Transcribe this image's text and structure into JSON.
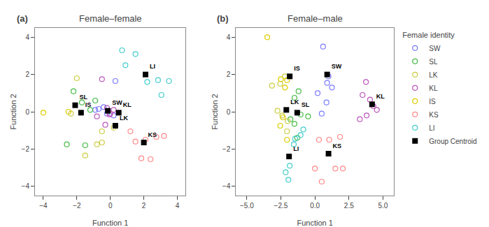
{
  "chart_data": [
    {
      "type": "scatter",
      "title": "Female–female",
      "annotations": [
        "(a)"
      ],
      "xlabel": "Function 1",
      "ylabel": "Function 2",
      "xlim": [
        -4.5,
        4.5
      ],
      "ylim": [
        -4.5,
        4.5
      ],
      "xticks": [
        -4,
        -2,
        0,
        2,
        4
      ],
      "yticks": [
        -4,
        -2,
        0,
        2,
        4
      ],
      "grid": false,
      "series": [
        {
          "name": "SW",
          "color": "#7b7bff",
          "marker": "circle-open",
          "x": [
            -0.9,
            -0.4,
            0.3,
            -0.2,
            0.2,
            -0.7
          ],
          "values": [
            0.1,
            0.25,
            1.65,
            -0.1,
            -0.2,
            0.15
          ]
        },
        {
          "name": "SL",
          "color": "#44bb44",
          "marker": "circle-open",
          "x": [
            -2.2,
            -1.7,
            -1.5,
            -1.2,
            -0.9,
            -2.6
          ],
          "values": [
            1.1,
            0.5,
            -1.8,
            0.1,
            0.6,
            -1.75
          ]
        },
        {
          "name": "LK",
          "color": "#cccc44",
          "marker": "circle-open",
          "x": [
            -2.0,
            -0.8,
            -1.5,
            -0.5,
            0.2,
            -2.35,
            -0.5
          ],
          "values": [
            1.8,
            -1.75,
            -2.35,
            -1.65,
            -0.85,
            -0.1,
            -1.05
          ]
        },
        {
          "name": "KL",
          "color": "#bb55bb",
          "marker": "circle-open",
          "x": [
            -0.5,
            -0.2,
            0.0,
            -0.8,
            -0.05,
            0.2,
            -0.3
          ],
          "values": [
            1.75,
            0.2,
            -0.1,
            -0.25,
            -0.15,
            0.1,
            -0.7
          ]
        },
        {
          "name": "IS",
          "color": "#ddcc00",
          "marker": "circle-open",
          "x": [
            -4.0,
            -2.5
          ],
          "values": [
            -0.05,
            0.0
          ]
        },
        {
          "name": "KS",
          "color": "#ff8888",
          "marker": "circle-open",
          "x": [
            1.5,
            2.1,
            2.75,
            1.85,
            2.4,
            1.2,
            3.2
          ],
          "values": [
            -1.6,
            -1.5,
            -1.35,
            -2.5,
            -2.55,
            -1.05,
            -1.3
          ]
        },
        {
          "name": "LI",
          "color": "#44cccc",
          "marker": "circle-open",
          "x": [
            0.7,
            1.5,
            2.2,
            2.85,
            3.5,
            0.9,
            3.05
          ],
          "values": [
            3.3,
            3.1,
            1.6,
            1.7,
            1.65,
            2.5,
            0.9
          ]
        },
        {
          "name": "Group Centroid",
          "color": "#000000",
          "marker": "square",
          "x": [
            -2.1,
            -1.75,
            -0.15,
            0.5,
            0.3,
            2.0,
            2.1
          ],
          "values": [
            0.35,
            -0.05,
            0.05,
            -0.05,
            -0.75,
            -1.65,
            2.0
          ],
          "labels": [
            "SL",
            "IS",
            "SW",
            "KL",
            "LK",
            "KS",
            "LI"
          ]
        }
      ]
    },
    {
      "type": "scatter",
      "title": "Female–male",
      "annotations": [
        "(b)"
      ],
      "xlabel": "Function 1",
      "ylabel": "Function 2",
      "xlim": [
        -5.8,
        5.8
      ],
      "ylim": [
        -4.5,
        4.5
      ],
      "xticks": [
        {
          "value": -5.0,
          "label": "−5.0"
        },
        {
          "value": -2.5,
          "label": "−2.5"
        },
        {
          "value": 0.0,
          "label": "0.0"
        },
        {
          "value": 2.5,
          "label": "2.5"
        },
        {
          "value": 5.0,
          "label": "5.0"
        }
      ],
      "yticks": [
        -4,
        -2,
        0,
        2,
        4
      ],
      "grid": false,
      "legend": "right",
      "legend_title": "Female identity",
      "series": [
        {
          "name": "SW",
          "color": "#7b7bff",
          "marker": "circle-open",
          "x": [
            0.6,
            1.0,
            0.9,
            1.25,
            0.2,
            0.85,
            0.5
          ],
          "values": [
            3.5,
            1.9,
            1.55,
            1.3,
            1.0,
            0.5,
            -0.1
          ]
        },
        {
          "name": "SL",
          "color": "#44bb44",
          "marker": "circle-open",
          "x": [
            -1.2,
            -1.5,
            -1.8,
            -1.5,
            -1.3,
            -0.5,
            -1.05
          ],
          "values": [
            1.1,
            0.75,
            -0.4,
            -0.65,
            -1.4,
            -0.25,
            -0.15
          ]
        },
        {
          "name": "LK",
          "color": "#cccc44",
          "marker": "circle-open",
          "x": [
            -2.2,
            -2.55,
            -3.15,
            -2.75,
            -2.4,
            -2.0,
            -2.05
          ],
          "values": [
            1.9,
            1.5,
            1.4,
            0.05,
            -0.2,
            -0.5,
            -1.05
          ]
        },
        {
          "name": "KL",
          "color": "#bb55bb",
          "marker": "circle-open",
          "x": [
            3.5,
            4.05,
            4.3,
            3.8,
            3.3,
            3.75,
            4.55
          ],
          "values": [
            0.9,
            0.65,
            0.3,
            -0.2,
            -0.4,
            1.6,
            0.1
          ]
        },
        {
          "name": "IS",
          "color": "#ddcc00",
          "marker": "circle-open",
          "x": [
            -3.5,
            -2.5,
            -2.2,
            -2.05,
            -2.35,
            -2.55,
            -2.05
          ],
          "values": [
            4.0,
            1.75,
            1.3,
            1.7,
            -0.3,
            -0.75,
            -1.5
          ]
        },
        {
          "name": "KS",
          "color": "#ff8888",
          "marker": "circle-open",
          "x": [
            0.3,
            1.05,
            0.5,
            1.5,
            2.05,
            0.0,
            1.85
          ],
          "values": [
            -1.5,
            -1.5,
            -3.75,
            -3.05,
            -3.05,
            -3.05,
            -1.35
          ]
        },
        {
          "name": "LI",
          "color": "#44cccc",
          "marker": "circle-open",
          "x": [
            -1.85,
            -2.15,
            -1.95,
            -1.45,
            -1.55,
            -0.85,
            -1.05
          ],
          "values": [
            -2.9,
            -3.25,
            -3.65,
            -1.45,
            -1.75,
            -0.95,
            -1.25
          ]
        },
        {
          "name": "Group Centroid",
          "color": "#000000",
          "marker": "square",
          "x": [
            -1.85,
            0.9,
            -2.1,
            -1.3,
            -1.9,
            1.0,
            4.2
          ],
          "values": [
            1.9,
            2.0,
            0.1,
            -0.05,
            -2.4,
            -2.25,
            0.4
          ],
          "labels": [
            "IS",
            "SW",
            "LK",
            "SL",
            "LI",
            "KS",
            "KL"
          ]
        }
      ]
    }
  ]
}
